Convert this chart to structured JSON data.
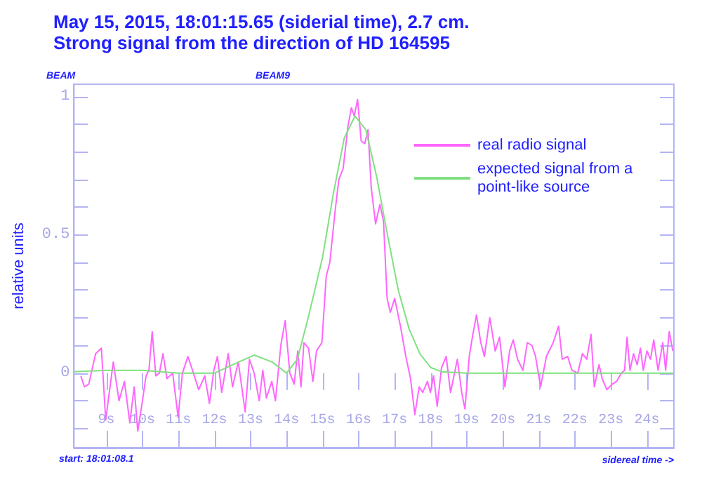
{
  "chart_data": {
    "type": "line",
    "title": "May 15, 2015, 18:01:15.65 (siderial time), 2.7 cm.",
    "subtitle": "Strong signal from the direction of HD 164595",
    "ylabel": "relative units",
    "xlabel": "sidereal time ->",
    "annotations": [
      "BEAM",
      "BEAM9",
      "start: 18:01:08.1"
    ],
    "xlim": [
      8.1,
      24.75
    ],
    "xticks": [
      {
        "value": 9,
        "label": "9s"
      },
      {
        "value": 10,
        "label": "10s"
      },
      {
        "value": 11,
        "label": "11s"
      },
      {
        "value": 12,
        "label": "12s"
      },
      {
        "value": 13,
        "label": "13s"
      },
      {
        "value": 14,
        "label": "14s"
      },
      {
        "value": 15,
        "label": "15s"
      },
      {
        "value": 16,
        "label": "16s"
      },
      {
        "value": 17,
        "label": "17s"
      },
      {
        "value": 18,
        "label": "18s"
      },
      {
        "value": 19,
        "label": "19s"
      },
      {
        "value": 20,
        "label": "20s"
      },
      {
        "value": 21,
        "label": "21s"
      },
      {
        "value": 22,
        "label": "22s"
      },
      {
        "value": 23,
        "label": "23s"
      },
      {
        "value": 24,
        "label": "24s"
      }
    ],
    "ylim": [
      -0.27,
      1.045
    ],
    "yticks": [
      {
        "value": -0.2,
        "label": null
      },
      {
        "value": -0.1,
        "label": null
      },
      0,
      {
        "value": 0.1,
        "label": null
      },
      {
        "value": 0.2,
        "label": null
      },
      {
        "value": 0.3,
        "label": null
      },
      {
        "value": 0.4,
        "label": null
      },
      0.5,
      {
        "value": 0.6,
        "label": null
      },
      {
        "value": 0.7,
        "label": null
      },
      {
        "value": 0.8,
        "label": null
      },
      {
        "value": 0.9,
        "label": null
      },
      1
    ],
    "grid": false,
    "legend": "top right",
    "marker": "none",
    "series": [
      {
        "name": "real radio signal",
        "color": "#ff66ff",
        "x": [
          8.29,
          8.39,
          8.51,
          8.7,
          8.86,
          8.98,
          9.19,
          9.35,
          9.5,
          9.65,
          9.77,
          9.87,
          10.0,
          10.1,
          10.18,
          10.27,
          10.37,
          10.47,
          10.57,
          10.68,
          10.84,
          10.99,
          11.11,
          11.26,
          11.39,
          11.56,
          11.73,
          11.86,
          11.98,
          12.08,
          12.2,
          12.38,
          12.5,
          12.66,
          12.85,
          12.97,
          13.1,
          13.24,
          13.34,
          13.44,
          13.59,
          13.69,
          13.84,
          13.96,
          14.09,
          14.21,
          14.31,
          14.4,
          14.48,
          14.61,
          14.73,
          14.83,
          14.98,
          15.1,
          15.2,
          15.35,
          15.45,
          15.57,
          15.7,
          15.8,
          15.88,
          15.97,
          16.07,
          16.17,
          16.26,
          16.35,
          16.47,
          16.59,
          16.69,
          16.79,
          16.88,
          17.0,
          17.16,
          17.31,
          17.44,
          17.56,
          17.68,
          17.78,
          17.91,
          17.99,
          18.08,
          18.18,
          18.3,
          18.43,
          18.55,
          18.74,
          18.86,
          18.95,
          19.07,
          19.17,
          19.27,
          19.39,
          19.49,
          19.64,
          19.79,
          19.91,
          20.06,
          20.19,
          20.29,
          20.41,
          20.56,
          20.68,
          20.81,
          20.91,
          21.05,
          21.21,
          21.4,
          21.55,
          21.65,
          21.8,
          21.92,
          22.08,
          22.21,
          22.33,
          22.45,
          22.54,
          22.67,
          22.76,
          22.89,
          23.04,
          23.16,
          23.29,
          23.38,
          23.45,
          23.53,
          23.63,
          23.73,
          23.82,
          23.9,
          24.0,
          24.1,
          24.19,
          24.31,
          24.44,
          24.52,
          24.62,
          24.72
        ],
        "values": [
          -0.01,
          -0.05,
          -0.04,
          0.07,
          0.09,
          -0.17,
          0.04,
          -0.1,
          -0.03,
          -0.18,
          -0.05,
          -0.21,
          -0.1,
          -0.01,
          0.01,
          0.15,
          -0.01,
          0.0,
          0.07,
          -0.02,
          0.0,
          -0.16,
          0.0,
          0.06,
          0.01,
          -0.06,
          -0.01,
          -0.11,
          0.01,
          0.06,
          -0.07,
          0.07,
          -0.05,
          0.04,
          -0.14,
          0.05,
          0.0,
          -0.1,
          0.01,
          -0.09,
          -0.03,
          -0.1,
          0.1,
          0.19,
          0.0,
          -0.04,
          0.08,
          -0.05,
          0.11,
          0.09,
          -0.03,
          0.08,
          0.11,
          0.35,
          0.4,
          0.59,
          0.7,
          0.74,
          0.89,
          0.96,
          0.93,
          0.99,
          0.84,
          0.83,
          0.88,
          0.67,
          0.54,
          0.61,
          0.55,
          0.27,
          0.22,
          0.27,
          0.17,
          0.06,
          -0.02,
          -0.15,
          -0.05,
          -0.07,
          -0.03,
          -0.07,
          -0.01,
          -0.12,
          0.02,
          0.06,
          -0.07,
          0.05,
          -0.07,
          -0.13,
          0.06,
          0.14,
          0.21,
          0.11,
          0.06,
          0.2,
          0.08,
          0.13,
          -0.05,
          0.08,
          0.12,
          0.05,
          0.01,
          0.11,
          0.1,
          0.06,
          -0.05,
          0.06,
          0.11,
          0.17,
          0.05,
          0.06,
          0.01,
          0.0,
          0.07,
          0.05,
          0.14,
          -0.05,
          0.03,
          -0.02,
          -0.06,
          -0.04,
          -0.03,
          0.0,
          0.01,
          0.13,
          0.01,
          0.07,
          0.03,
          0.09,
          0.01,
          0.08,
          0.05,
          0.12,
          0.01,
          0.11,
          0.01,
          0.15,
          0.08
        ]
      },
      {
        "name": "expected signal from a point-like source",
        "color": "#80e080",
        "x": [
          8.1,
          9,
          10,
          11,
          12,
          12.5,
          13.1,
          13.6,
          14.0,
          14.3,
          14.6,
          15.0,
          15.3,
          15.6,
          15.9,
          16.2,
          16.5,
          16.8,
          17.1,
          17.4,
          17.7,
          18.0,
          18.3,
          19,
          20,
          21,
          22,
          23,
          24,
          24.75
        ],
        "values": [
          0.005,
          0.01,
          0.01,
          0.0,
          0.0,
          0.03,
          0.065,
          0.04,
          0.0,
          0.05,
          0.2,
          0.42,
          0.65,
          0.85,
          0.93,
          0.88,
          0.71,
          0.5,
          0.3,
          0.16,
          0.07,
          0.02,
          0.005,
          0.0,
          0.0,
          0.0,
          0.0,
          0.0,
          0.0,
          0.0
        ]
      }
    ]
  }
}
